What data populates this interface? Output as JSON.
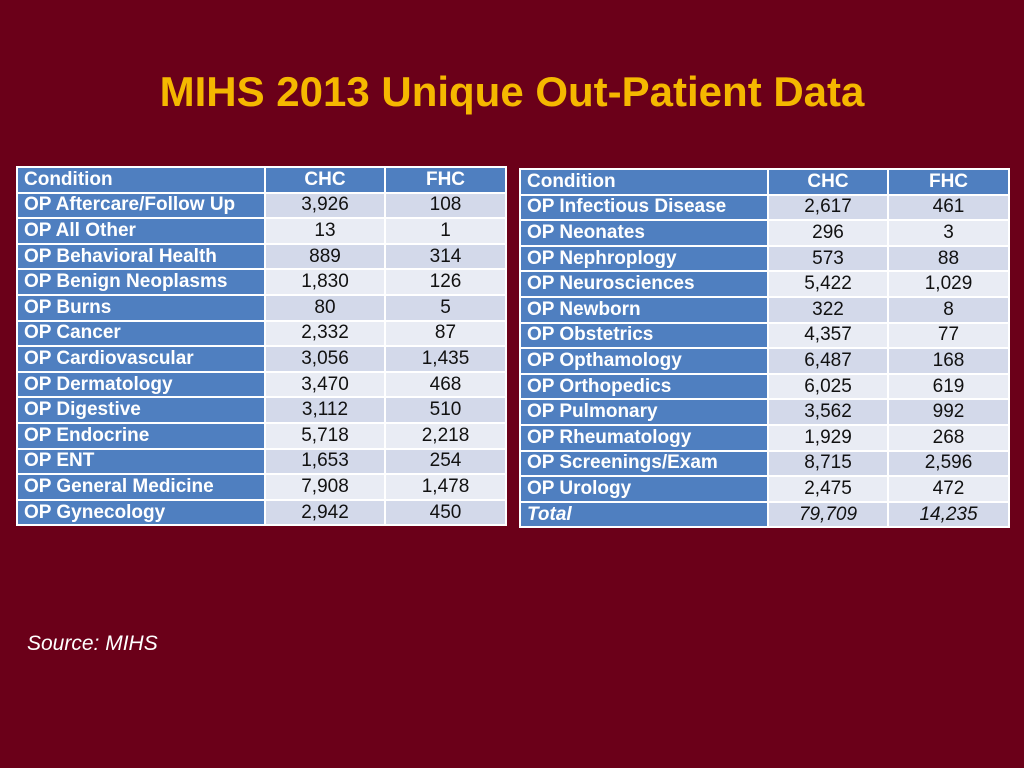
{
  "title": "MIHS 2013 Unique Out-Patient Data",
  "headers": {
    "condition": "Condition",
    "chc": "CHC",
    "fhc": "FHC"
  },
  "left_table": [
    {
      "condition": "OP Aftercare/Follow Up",
      "chc": "3,926",
      "fhc": "108"
    },
    {
      "condition": "OP All Other",
      "chc": "13",
      "fhc": "1"
    },
    {
      "condition": "OP Behavioral Health",
      "chc": "889",
      "fhc": "314"
    },
    {
      "condition": "OP Benign Neoplasms",
      "chc": "1,830",
      "fhc": "126"
    },
    {
      "condition": "OP Burns",
      "chc": "80",
      "fhc": "5"
    },
    {
      "condition": "OP Cancer",
      "chc": "2,332",
      "fhc": "87"
    },
    {
      "condition": "OP Cardiovascular",
      "chc": "3,056",
      "fhc": "1,435"
    },
    {
      "condition": "OP Dermatology",
      "chc": "3,470",
      "fhc": "468"
    },
    {
      "condition": "OP Digestive",
      "chc": "3,112",
      "fhc": "510"
    },
    {
      "condition": "OP Endocrine",
      "chc": "5,718",
      "fhc": "2,218"
    },
    {
      "condition": "OP ENT",
      "chc": "1,653",
      "fhc": "254"
    },
    {
      "condition": "OP General Medicine",
      "chc": "7,908",
      "fhc": "1,478"
    },
    {
      "condition": "OP Gynecology",
      "chc": "2,942",
      "fhc": "450"
    }
  ],
  "right_table": [
    {
      "condition": "OP Infectious Disease",
      "chc": "2,617",
      "fhc": "461"
    },
    {
      "condition": "OP Neonates",
      "chc": "296",
      "fhc": "3"
    },
    {
      "condition": "OP Nephroplogy",
      "chc": "573",
      "fhc": "88"
    },
    {
      "condition": "OP Neurosciences",
      "chc": "5,422",
      "fhc": "1,029"
    },
    {
      "condition": "OP Newborn",
      "chc": "322",
      "fhc": "8"
    },
    {
      "condition": "OP Obstetrics",
      "chc": "4,357",
      "fhc": "77"
    },
    {
      "condition": "OP Opthamology",
      "chc": "6,487",
      "fhc": "168"
    },
    {
      "condition": "OP Orthopedics",
      "chc": "6,025",
      "fhc": "619"
    },
    {
      "condition": "OP Pulmonary",
      "chc": "3,562",
      "fhc": "992"
    },
    {
      "condition": "OP Rheumatology",
      "chc": "1,929",
      "fhc": "268"
    },
    {
      "condition": "OP Screenings/Exam",
      "chc": "8,715",
      "fhc": "2,596"
    },
    {
      "condition": "OP Urology",
      "chc": "2,475",
      "fhc": "472"
    }
  ],
  "total": {
    "label": "Total",
    "chc": "79,709",
    "fhc": "14,235"
  },
  "source": "Source: MIHS",
  "colors": {
    "background": "#6b0019",
    "title": "#f5b800",
    "header_blue": "#4f7fc0",
    "row_light": "#d3d9ea",
    "row_lighter": "#e9ecf4"
  }
}
